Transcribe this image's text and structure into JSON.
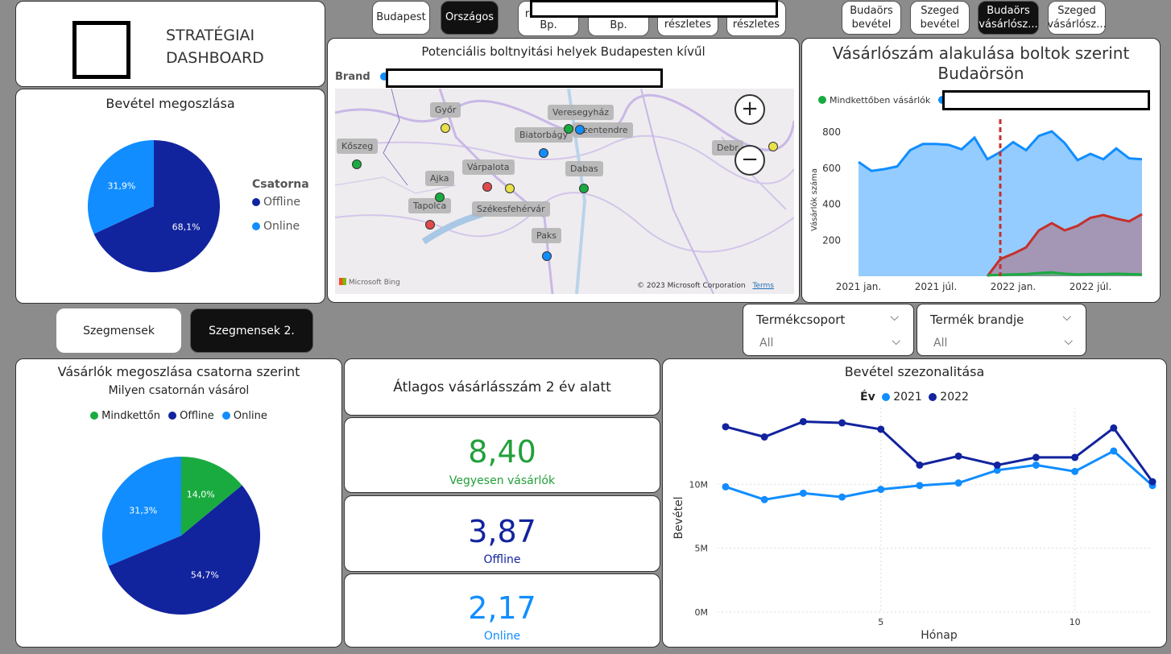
{
  "header": {
    "title_line1": "STRATÉGIAI",
    "title_line2": "DASHBOARD"
  },
  "nav": {
    "btn_budapest": "Budapest",
    "btn_orszagos": "Országos",
    "btn_reszl_bp1_l1": "részletes",
    "btn_reszl_bp1_l2": "Bp.",
    "btn_reszl_bp2_l1": "részletes",
    "btn_reszl_bp2_l2": "Bp.",
    "btn_reszl3": "részletes",
    "btn_reszl4": "részletes",
    "btn_budaors_bev_l1": "Budaörs",
    "btn_budaors_bev_l2": "bevétel",
    "btn_szeged_bev_l1": "Szeged",
    "btn_szeged_bev_l2": "bevétel",
    "btn_budaors_vas_l1": "Budaörs",
    "btn_budaors_vas_l2": "vásárlósz...",
    "btn_szeged_vas_l1": "Szeged",
    "btn_szeged_vas_l2": "vásárlósz..."
  },
  "revenue_pie": {
    "title": "Bevétel megoszlása",
    "legend_title": "Csatorna",
    "legend": [
      "Offline",
      "Online"
    ],
    "colors": {
      "offline": "#12239e",
      "online": "#118dff"
    },
    "chart_data": {
      "type": "pie",
      "categories": [
        "Offline",
        "Online"
      ],
      "values": [
        68.1,
        31.9
      ],
      "labels": [
        "68,1%",
        "31,9%"
      ]
    }
  },
  "map": {
    "title": "Potenciális boltnyitási helyek Budapesten kívűl",
    "legend_label": "Brand",
    "bing": "Microsoft Bing",
    "copyright": "© 2023 Microsoft Corporation",
    "terms": "Terms",
    "cities": [
      "Győr",
      "Veresegyház",
      "Biatorbágy",
      "Szentendre",
      "Kőszeg",
      "Debrecen",
      "Ajka",
      "Várpalota",
      "Dabas",
      "Tapolca",
      "Székesfehérvár",
      "Paks"
    ],
    "city_debrecen_visible": "Debr"
  },
  "budaors_chart": {
    "title_l1": "Vásárlószám alakulása boltok szerint",
    "title_l2": "Budaörsön",
    "legend_mindketto": "Mindkettőben vásárlók",
    "ylabel": "Vásárlók száma",
    "yticks": [
      "800",
      "600",
      "400",
      "200"
    ],
    "xticks": [
      "2021 jan.",
      "2021 júl.",
      "2022 jan.",
      "2022 júl."
    ],
    "chart_data": {
      "type": "area",
      "x": [
        "2021-01",
        "2021-02",
        "2021-03",
        "2021-04",
        "2021-05",
        "2021-06",
        "2021-07",
        "2021-08",
        "2021-09",
        "2021-10",
        "2021-11",
        "2021-12",
        "2022-01",
        "2022-02",
        "2022-03",
        "2022-04",
        "2022-05",
        "2022-06",
        "2022-07",
        "2022-08",
        "2022-09",
        "2022-10",
        "2022-11"
      ],
      "ylim": [
        0,
        850
      ],
      "series": [
        {
          "name": "",
          "color": "#118dff",
          "values": [
            635,
            585,
            595,
            610,
            700,
            735,
            735,
            730,
            705,
            770,
            650,
            690,
            745,
            700,
            780,
            805,
            740,
            645,
            680,
            650,
            710,
            655,
            650
          ]
        },
        {
          "name": "",
          "color": "#c4302b",
          "values": [
            null,
            null,
            null,
            null,
            null,
            null,
            null,
            null,
            null,
            null,
            0,
            95,
            125,
            160,
            255,
            295,
            255,
            280,
            325,
            340,
            320,
            305,
            345
          ]
        },
        {
          "name": "Mindkettőben vásárlók",
          "color": "#1aab40",
          "values": [
            null,
            null,
            null,
            null,
            null,
            null,
            null,
            null,
            null,
            null,
            5,
            8,
            10,
            12,
            18,
            22,
            14,
            10,
            12,
            12,
            14,
            12,
            10
          ]
        }
      ],
      "marker_line_x": "2021-12"
    }
  },
  "segments": {
    "btn1": "Szegmensek",
    "btn2": "Szegmensek 2."
  },
  "slicers": {
    "s1_title": "Termékcsoport",
    "s1_value": "All",
    "s2_title": "Termék brandje",
    "s2_value": "All"
  },
  "customers_pie": {
    "title": "Vásárlók megoszlása csatorna szerint",
    "legend_title": "Milyen csatornán vásárol",
    "legend": [
      "Mindkettőn",
      "Offline",
      "Online"
    ],
    "colors": {
      "mindketto": "#1aab40",
      "offline": "#12239e",
      "online": "#118dff"
    },
    "chart_data": {
      "type": "pie",
      "categories": [
        "Mindkettőn",
        "Offline",
        "Online"
      ],
      "values": [
        14.0,
        54.7,
        31.3
      ],
      "labels": [
        "14,0%",
        "54,7%",
        "31,3%"
      ]
    }
  },
  "kpi": {
    "title": "Átlagos vásárlásszám 2 év alatt",
    "mixed_value": "8,40",
    "mixed_label": "Vegyesen vásárlók",
    "offline_value": "3,87",
    "offline_label": "Offline",
    "online_value": "2,17",
    "online_label": "Online"
  },
  "seasonality": {
    "title": "Bevétel szezonalitása",
    "legend_title": "Év",
    "legend": [
      "2021",
      "2022"
    ],
    "ylabel": "Bevétel",
    "xlabel": "Hónap",
    "yticks": [
      "10M",
      "5M",
      "0M"
    ],
    "xticks": [
      "5",
      "10"
    ],
    "chart_data": {
      "type": "line",
      "x": [
        1,
        2,
        3,
        4,
        5,
        6,
        7,
        8,
        9,
        10,
        11,
        12
      ],
      "ylim": [
        0,
        16
      ],
      "series": [
        {
          "name": "2021",
          "color": "#118dff",
          "values": [
            9.8,
            8.8,
            9.3,
            9.0,
            9.6,
            9.9,
            10.1,
            11.1,
            11.5,
            11.0,
            12.6,
            9.9
          ]
        },
        {
          "name": "2022",
          "color": "#12239e",
          "values": [
            14.5,
            13.7,
            14.9,
            14.8,
            14.3,
            11.5,
            12.2,
            11.5,
            12.1,
            12.1,
            14.4,
            10.2
          ]
        }
      ]
    }
  }
}
